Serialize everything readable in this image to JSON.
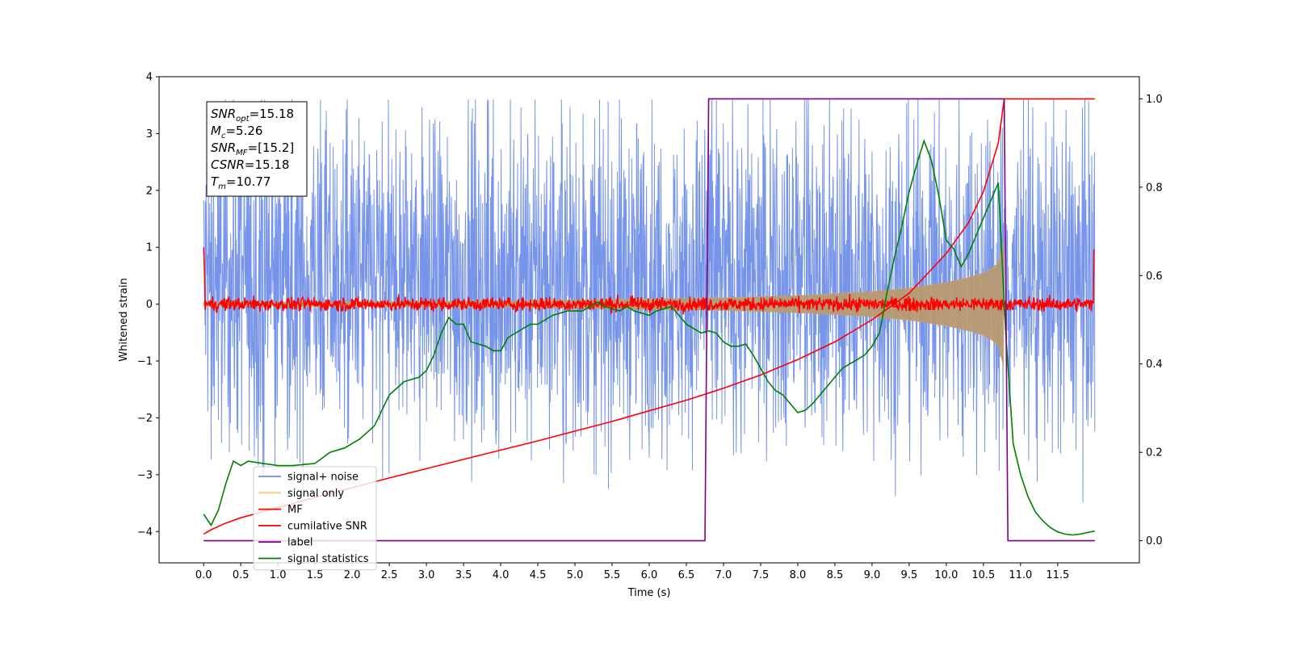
{
  "chart_data": {
    "type": "line",
    "xlabel": "Time (s)",
    "ylabel": "Whitened strain",
    "xlim": [
      -0.6,
      12.6
    ],
    "ylim": [
      -4.55,
      4.0
    ],
    "y2lim": [
      -0.05,
      1.05
    ],
    "x_ticks": [
      "0.0",
      "0.5",
      "1.0",
      "1.5",
      "2.0",
      "2.5",
      "3.0",
      "3.5",
      "4.0",
      "4.5",
      "5.0",
      "5.5",
      "6.0",
      "6.5",
      "7.0",
      "7.5",
      "8.0",
      "8.5",
      "9.0",
      "9.5",
      "10.0",
      "10.5",
      "11.0",
      "11.5"
    ],
    "y_ticks": [
      "4",
      "3",
      "2",
      "1",
      "0",
      "−1",
      "−2",
      "−3",
      "−4"
    ],
    "y2_ticks": [
      "1.0",
      "0.8",
      "0.6",
      "0.4",
      "0.2",
      "0.0"
    ],
    "annotation": {
      "lines": [
        {
          "base": "SNR",
          "sub": "opt",
          "rest": "=15.18"
        },
        {
          "base": "M",
          "sub": "c",
          "rest": "=5.26"
        },
        {
          "base": "SNR",
          "sub": "MF",
          "rest": "=[15.2]"
        },
        {
          "base": "CSNR",
          "sub": "",
          "rest": "=15.18"
        },
        {
          "base": "T",
          "sub": "m",
          "rest": "=10.77"
        }
      ]
    },
    "legend": {
      "placement": "lower-left",
      "entries": [
        {
          "label": "signal+ noise",
          "color": "#6f8ee8"
        },
        {
          "label": "signal only",
          "color": "#ffc87a"
        },
        {
          "label": "MF",
          "color": "#ff0000"
        },
        {
          "label": "cumilative SNR",
          "color": "#ff0000"
        },
        {
          "label": "label",
          "color": "#800080"
        },
        {
          "label": "signal statistics",
          "color": "#008000"
        }
      ]
    },
    "series": [
      {
        "name": "label",
        "axis": "right",
        "color": "#800080",
        "x": [
          0.0,
          6.75,
          6.8,
          10.78,
          10.83,
          12.0
        ],
        "y": [
          0.0,
          0.0,
          1.0,
          1.0,
          0.0,
          0.0
        ]
      },
      {
        "name": "cumilative SNR",
        "axis": "right",
        "color": "#ff0000",
        "x": [
          0.0,
          0.1,
          0.3,
          0.5,
          1.0,
          1.5,
          2.0,
          2.5,
          3.0,
          3.5,
          4.0,
          4.5,
          5.0,
          5.5,
          6.0,
          6.5,
          7.0,
          7.5,
          8.0,
          8.5,
          9.0,
          9.5,
          10.0,
          10.3,
          10.5,
          10.7,
          10.78,
          12.0
        ],
        "y": [
          0.015,
          0.025,
          0.04,
          0.052,
          0.075,
          0.098,
          0.12,
          0.142,
          0.163,
          0.184,
          0.205,
          0.226,
          0.248,
          0.27,
          0.294,
          0.318,
          0.345,
          0.375,
          0.41,
          0.45,
          0.5,
          0.56,
          0.65,
          0.72,
          0.79,
          0.9,
          1.0,
          1.0
        ]
      },
      {
        "name": "signal statistics",
        "axis": "right",
        "color": "#008000",
        "x": [
          0.0,
          0.1,
          0.2,
          0.3,
          0.4,
          0.5,
          0.6,
          0.8,
          1.0,
          1.2,
          1.5,
          1.7,
          1.9,
          2.1,
          2.3,
          2.5,
          2.7,
          2.9,
          3.0,
          3.1,
          3.2,
          3.3,
          3.4,
          3.5,
          3.6,
          3.7,
          3.8,
          3.9,
          4.0,
          4.1,
          4.2,
          4.3,
          4.4,
          4.5,
          4.6,
          4.7,
          4.8,
          4.9,
          5.0,
          5.1,
          5.2,
          5.3,
          5.4,
          5.5,
          5.6,
          5.7,
          5.8,
          5.9,
          6.0,
          6.1,
          6.2,
          6.3,
          6.4,
          6.5,
          6.6,
          6.7,
          6.8,
          6.9,
          7.0,
          7.1,
          7.2,
          7.3,
          7.4,
          7.5,
          7.6,
          7.7,
          7.8,
          7.9,
          8.0,
          8.1,
          8.2,
          8.3,
          8.4,
          8.5,
          8.6,
          8.7,
          8.8,
          8.9,
          9.0,
          9.1,
          9.2,
          9.3,
          9.4,
          9.5,
          9.6,
          9.7,
          9.8,
          9.9,
          10.0,
          10.1,
          10.2,
          10.3,
          10.4,
          10.5,
          10.6,
          10.7,
          10.8,
          10.9,
          11.0,
          11.1,
          11.2,
          11.3,
          11.4,
          11.5,
          11.6,
          11.7,
          11.8,
          12.0
        ],
        "y": [
          0.06,
          0.035,
          0.07,
          0.13,
          0.18,
          0.17,
          0.18,
          0.175,
          0.17,
          0.17,
          0.175,
          0.2,
          0.21,
          0.23,
          0.26,
          0.33,
          0.36,
          0.37,
          0.385,
          0.42,
          0.47,
          0.505,
          0.49,
          0.49,
          0.45,
          0.445,
          0.44,
          0.43,
          0.43,
          0.46,
          0.47,
          0.48,
          0.49,
          0.49,
          0.5,
          0.51,
          0.515,
          0.52,
          0.52,
          0.52,
          0.53,
          0.54,
          0.53,
          0.525,
          0.52,
          0.53,
          0.52,
          0.515,
          0.51,
          0.52,
          0.525,
          0.53,
          0.51,
          0.49,
          0.48,
          0.47,
          0.475,
          0.47,
          0.45,
          0.44,
          0.44,
          0.445,
          0.42,
          0.39,
          0.36,
          0.34,
          0.33,
          0.31,
          0.29,
          0.295,
          0.31,
          0.33,
          0.35,
          0.37,
          0.39,
          0.4,
          0.41,
          0.42,
          0.44,
          0.47,
          0.56,
          0.64,
          0.71,
          0.79,
          0.85,
          0.905,
          0.86,
          0.78,
          0.68,
          0.66,
          0.62,
          0.65,
          0.69,
          0.73,
          0.77,
          0.81,
          0.47,
          0.22,
          0.15,
          0.1,
          0.065,
          0.045,
          0.03,
          0.02,
          0.015,
          0.013,
          0.015,
          0.022
        ]
      },
      {
        "name": "signal only",
        "axis": "left",
        "color": "#ffc87a",
        "x": [
          0.0,
          1.0,
          2.0,
          3.0,
          4.0,
          5.0,
          6.0,
          7.0,
          8.0,
          9.0,
          9.5,
          10.0,
          10.3,
          10.5,
          10.6,
          10.7,
          10.77
        ],
        "amplitude": [
          0.03,
          0.035,
          0.04,
          0.05,
          0.06,
          0.07,
          0.09,
          0.11,
          0.15,
          0.22,
          0.28,
          0.38,
          0.47,
          0.55,
          0.62,
          0.72,
          1.1
        ]
      },
      {
        "name": "MF",
        "axis": "left",
        "color": "#ff0000",
        "x_range": [
          0.0,
          12.0
        ],
        "level": 0.0,
        "noise_amplitude": 0.06
      },
      {
        "name": "signal+ noise",
        "axis": "left",
        "color": "#6f8ee8",
        "x_range": [
          0.0,
          12.0
        ],
        "typical_range": [
          -1.6,
          2.4
        ],
        "peak_range": [
          -4.15,
          3.6
        ]
      }
    ]
  }
}
